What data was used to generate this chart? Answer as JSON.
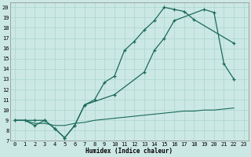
{
  "xlabel": "Humidex (Indice chaleur)",
  "bg_color": "#cce8e4",
  "grid_color": "#aad4cc",
  "line_color": "#1a6b5a",
  "xlim": [
    -0.5,
    23.5
  ],
  "ylim": [
    7,
    20.5
  ],
  "xticks": [
    0,
    1,
    2,
    3,
    4,
    5,
    6,
    7,
    8,
    9,
    10,
    11,
    12,
    13,
    14,
    15,
    16,
    17,
    18,
    19,
    20,
    21,
    22,
    23
  ],
  "yticks": [
    7,
    8,
    9,
    10,
    11,
    12,
    13,
    14,
    15,
    16,
    17,
    18,
    19,
    20
  ],
  "curve1_x": [
    0,
    1,
    2,
    3,
    4,
    5,
    6,
    7,
    8,
    9,
    10,
    11,
    12,
    13,
    14,
    15,
    16,
    17,
    18,
    22
  ],
  "curve1_y": [
    9,
    9,
    8.5,
    9,
    8.2,
    7.3,
    8.5,
    10.5,
    11,
    12.7,
    13.3,
    15.8,
    16.7,
    17.8,
    18.7,
    20,
    19.8,
    19.6,
    18.8,
    16.5
  ],
  "curve2_x": [
    0,
    2,
    3,
    4,
    5,
    6,
    7,
    10,
    13,
    14,
    15,
    16,
    19,
    20,
    21,
    22
  ],
  "curve2_y": [
    9,
    9,
    9,
    8.2,
    7.3,
    8.5,
    10.5,
    11.5,
    13.7,
    15.8,
    17,
    18.7,
    19.8,
    19.5,
    14.5,
    13
  ],
  "curve3_x": [
    0,
    1,
    2,
    3,
    4,
    5,
    6,
    7,
    8,
    9,
    10,
    11,
    12,
    13,
    14,
    15,
    16,
    17,
    18,
    19,
    20,
    21,
    22
  ],
  "curve3_y": [
    9,
    9,
    8.7,
    8.7,
    8.5,
    8.5,
    8.7,
    8.8,
    9,
    9.1,
    9.2,
    9.3,
    9.4,
    9.5,
    9.6,
    9.7,
    9.8,
    9.9,
    9.9,
    10.0,
    10.0,
    10.1,
    10.2
  ]
}
